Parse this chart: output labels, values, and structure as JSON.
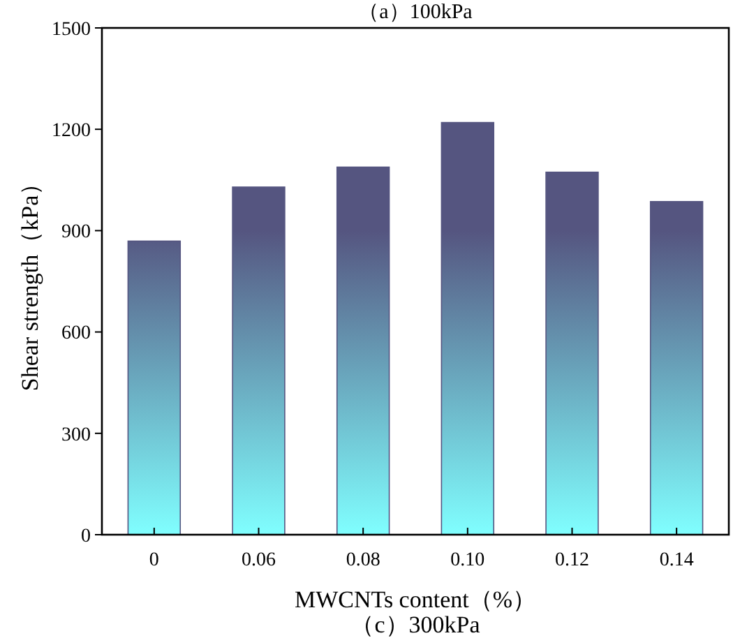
{
  "chart_data": {
    "type": "bar",
    "title": "（c）300kPa",
    "annotations": [
      "（a）100kPa"
    ],
    "xlabel": "MWCNTs content（%）",
    "ylabel": "Shear strength（kPa）",
    "categories": [
      "0",
      "0.06",
      "0.08",
      "0.10",
      "0.12",
      "0.14"
    ],
    "values": [
      869,
      1029,
      1088,
      1220,
      1073,
      986
    ],
    "color": "#555580",
    "ylim": [
      0,
      1500
    ],
    "yticks": [
      0,
      300,
      600,
      900,
      1200,
      1500
    ],
    "grid": false
  }
}
